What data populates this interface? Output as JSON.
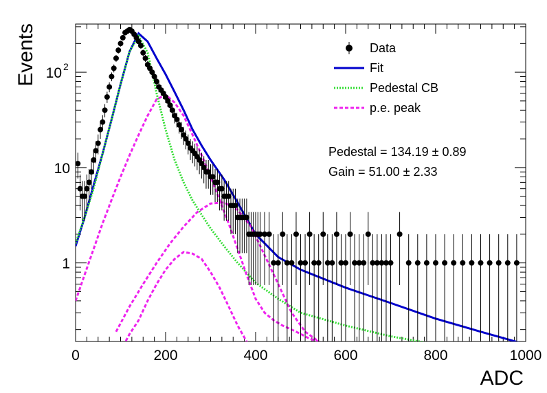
{
  "chart_data": {
    "type": "scatter",
    "title": "",
    "xlabel": "ADC",
    "ylabel": "Events",
    "xlim": [
      0,
      1000
    ],
    "ylim": [
      0.15,
      320
    ],
    "yscale": "log",
    "x_ticks": [
      "0",
      "200",
      "400",
      "600",
      "800",
      "1000"
    ],
    "y_ticks": [
      {
        "value": 1,
        "label": "1"
      },
      {
        "value": 10,
        "label": "10"
      },
      {
        "value": 100,
        "label": "10",
        "exponent": "2"
      }
    ],
    "grid": false,
    "legend_position": "top-right",
    "legend": [
      {
        "label": "Data",
        "style": "marker-errorbar",
        "color": "#000000"
      },
      {
        "label": "Fit",
        "style": "solid",
        "color": "#0000cc"
      },
      {
        "label": "Pedestal CB",
        "style": "dotted",
        "color": "#33dd33"
      },
      {
        "label": "p.e. peak",
        "style": "dashed",
        "color": "#ee22ee"
      }
    ],
    "annotations": [
      "Pedestal = 134.19 ± 0.89",
      "Gain = 51.00 ± 2.33"
    ],
    "series": [
      {
        "name": "Data",
        "kind": "points",
        "color": "#000000",
        "x": [
          5,
          10,
          15,
          20,
          25,
          30,
          35,
          40,
          45,
          50,
          55,
          60,
          65,
          70,
          75,
          80,
          85,
          90,
          95,
          100,
          105,
          110,
          115,
          120,
          125,
          130,
          135,
          140,
          145,
          150,
          155,
          160,
          165,
          170,
          175,
          180,
          185,
          190,
          195,
          200,
          205,
          210,
          215,
          220,
          225,
          230,
          235,
          240,
          245,
          250,
          255,
          260,
          265,
          270,
          275,
          280,
          285,
          290,
          295,
          300,
          305,
          310,
          315,
          320,
          325,
          330,
          335,
          340,
          345,
          350,
          355,
          360,
          365,
          370,
          375,
          380,
          385,
          390,
          395,
          400,
          405,
          410,
          420,
          430,
          440,
          450,
          460,
          470,
          480,
          490,
          500,
          510,
          520,
          530,
          540,
          550,
          560,
          570,
          580,
          590,
          600,
          610,
          620,
          630,
          640,
          650,
          660,
          670,
          680,
          690,
          700,
          720,
          740,
          760,
          780,
          800,
          820,
          840,
          860,
          880,
          900,
          920,
          940,
          960,
          980
        ],
        "y": [
          11,
          6,
          5,
          5,
          6,
          7,
          9,
          12,
          15,
          18,
          25,
          30,
          40,
          55,
          70,
          90,
          110,
          140,
          170,
          200,
          230,
          260,
          270,
          280,
          270,
          250,
          230,
          210,
          190,
          160,
          140,
          120,
          110,
          100,
          90,
          80,
          70,
          65,
          60,
          55,
          50,
          45,
          40,
          35,
          32,
          28,
          25,
          22,
          20,
          18,
          16,
          15,
          14,
          13,
          12,
          11,
          10,
          9,
          9,
          8,
          8,
          7,
          7,
          6,
          6,
          5,
          5,
          5,
          4,
          4,
          4,
          3,
          3,
          3,
          3,
          3,
          2,
          2,
          2,
          2,
          2,
          2,
          2,
          2,
          1,
          1,
          2,
          1,
          1,
          2,
          1,
          1,
          2,
          1,
          1,
          2,
          1,
          1,
          2,
          1,
          1,
          2,
          1,
          1,
          1,
          2,
          1,
          1,
          1,
          1,
          1,
          2,
          1,
          1,
          1,
          1,
          1,
          1,
          1,
          1,
          1,
          1,
          1,
          1,
          1
        ]
      },
      {
        "name": "Fit",
        "kind": "line",
        "color": "#0000cc",
        "x": [
          0,
          20,
          40,
          60,
          80,
          100,
          120,
          140,
          160,
          180,
          200,
          220,
          240,
          260,
          280,
          300,
          330,
          360,
          400,
          450,
          500,
          600,
          700,
          800,
          900,
          1000
        ],
        "y": [
          1.5,
          3,
          6.5,
          14,
          32,
          75,
          165,
          255,
          210,
          140,
          95,
          62,
          40,
          25,
          17,
          12,
          7.5,
          4.3,
          2.0,
          1.15,
          0.85,
          0.55,
          0.38,
          0.26,
          0.19,
          0.14
        ]
      },
      {
        "name": "Pedestal CB",
        "kind": "line",
        "color": "#33dd33",
        "x": [
          0,
          20,
          40,
          60,
          80,
          100,
          120,
          140,
          160,
          170,
          180,
          200,
          220,
          240,
          260,
          280,
          300,
          330,
          360,
          400,
          450,
          500,
          600,
          700,
          800
        ],
        "y": [
          1.6,
          3,
          6,
          14,
          32,
          75,
          165,
          240,
          160,
          100,
          60,
          25,
          12,
          7,
          4.5,
          3.2,
          2.3,
          1.5,
          1.0,
          0.62,
          0.42,
          0.3,
          0.22,
          0.17,
          0.14
        ]
      },
      {
        "name": "p.e. peak",
        "kind": "line",
        "color": "#ee22ee",
        "x": [
          0,
          20,
          40,
          60,
          80,
          100,
          120,
          140,
          160,
          180,
          200,
          220,
          240,
          260,
          280,
          300,
          320,
          340,
          360,
          380,
          400,
          420,
          440,
          460,
          480,
          500,
          520,
          540,
          560
        ],
        "y": [
          0.4,
          0.75,
          1.4,
          2.6,
          4.6,
          8,
          13.5,
          22,
          35,
          52,
          58,
          48,
          35,
          22,
          13.5,
          8,
          4.6,
          2.6,
          1.4,
          0.75,
          0.42,
          0.3,
          0.25,
          0.22,
          0.2,
          0.18,
          0.16,
          0.15,
          0.14
        ]
      },
      {
        "name": "",
        "kind": "line",
        "color": "#ee22ee",
        "x": [
          90,
          120,
          150,
          180,
          210,
          240,
          270,
          300,
          330,
          360,
          390,
          420,
          450,
          480,
          510,
          540
        ],
        "y": [
          0.19,
          0.35,
          0.6,
          1.0,
          1.6,
          2.4,
          3.4,
          4.2,
          4.3,
          3.6,
          2.4,
          1.2,
          0.6,
          0.3,
          0.19,
          0.15
        ]
      },
      {
        "name": "",
        "kind": "line",
        "color": "#ee22ee",
        "x": [
          100,
          120,
          140,
          160,
          180,
          200,
          220,
          240,
          260,
          280,
          300,
          320,
          340,
          360,
          380,
          400
        ],
        "y": [
          0.12,
          0.18,
          0.25,
          0.4,
          0.6,
          0.85,
          1.1,
          1.3,
          1.25,
          1.1,
          0.8,
          0.55,
          0.35,
          0.22,
          0.15,
          0.12
        ]
      }
    ]
  }
}
